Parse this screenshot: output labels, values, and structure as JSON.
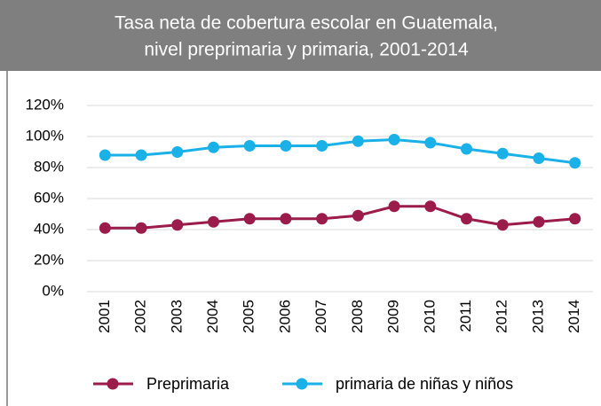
{
  "chart_data": {
    "type": "line",
    "title_lines": [
      "Tasa neta de cobertura escolar en Guatemala,",
      "nivel preprimaria y primaria, 2001-2014"
    ],
    "categories": [
      "2001",
      "2002",
      "2003",
      "2004",
      "2005",
      "2006",
      "2007",
      "2008",
      "2009",
      "2010",
      "2011",
      "2012",
      "2013",
      "2014"
    ],
    "series": [
      {
        "name": "Preprimaria",
        "color": "#9b1b4a",
        "values": [
          41,
          41,
          43,
          45,
          47,
          47,
          47,
          49,
          55,
          55,
          47,
          43,
          45,
          47
        ]
      },
      {
        "name": "primaria de niñas y niños",
        "color": "#1ab0e8",
        "values": [
          88,
          88,
          90,
          93,
          94,
          94,
          94,
          97,
          98,
          96,
          92,
          89,
          86,
          83
        ]
      }
    ],
    "ylim": [
      0,
      120
    ],
    "yticks": [
      {
        "value": 0,
        "label": "0%"
      },
      {
        "value": 20,
        "label": "20%"
      },
      {
        "value": 40,
        "label": "40%"
      },
      {
        "value": 60,
        "label": "60%"
      },
      {
        "value": 80,
        "label": "80%"
      },
      {
        "value": 100,
        "label": "100%"
      },
      {
        "value": 120,
        "label": "120%"
      }
    ],
    "grid": true,
    "legend": "bottom"
  }
}
